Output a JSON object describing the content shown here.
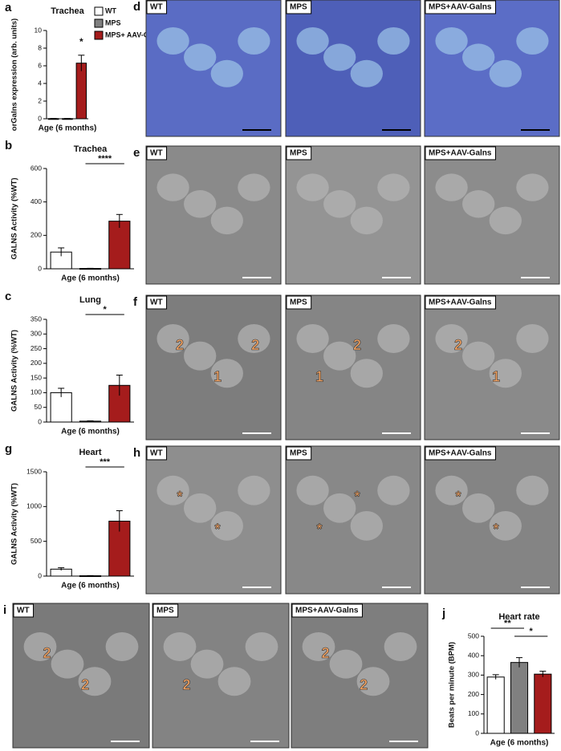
{
  "chart_data": [
    {
      "panel": "a",
      "type": "bar",
      "title": "Trachea",
      "y_label": "orGalns expression (arb. units)",
      "x_label": "Age (6 months)",
      "categories": [
        null,
        null,
        null
      ],
      "values": [
        0.02,
        0.02,
        6.3
      ],
      "errors": [
        0.01,
        0.01,
        0.9
      ],
      "colors": [
        "#ffffff",
        "#808080",
        "#a51c1c"
      ],
      "ylim": [
        0,
        10
      ],
      "yticks": [
        0,
        2,
        4,
        6,
        8,
        10
      ],
      "significance": [
        "*"
      ],
      "legend": [
        "WT",
        "MPS",
        "MPS+ AAV-Galns"
      ]
    },
    {
      "panel": "b",
      "type": "bar",
      "title": "Trachea",
      "y_label": "GALNS Activity (%WT)",
      "x_label": "Age (6 months)",
      "categories": [
        null,
        null,
        null
      ],
      "values": [
        100,
        2,
        285
      ],
      "errors": [
        25,
        1,
        40
      ],
      "colors": [
        "#ffffff",
        "#808080",
        "#a51c1c"
      ],
      "ylim": [
        0,
        600
      ],
      "yticks": [
        0,
        200,
        400,
        600
      ],
      "significance": [
        "****"
      ]
    },
    {
      "panel": "c",
      "type": "bar",
      "title": "Lung",
      "y_label": "GALNS Activity (%WT)",
      "x_label": "Age (6 months)",
      "categories": [
        null,
        null,
        null
      ],
      "values": [
        100,
        3,
        125
      ],
      "errors": [
        15,
        1,
        35
      ],
      "colors": [
        "#ffffff",
        "#808080",
        "#a51c1c"
      ],
      "ylim": [
        0,
        350
      ],
      "yticks": [
        0,
        50,
        100,
        150,
        200,
        250,
        300,
        350
      ],
      "significance": [
        "*"
      ]
    },
    {
      "panel": "g",
      "type": "bar",
      "title": "Heart",
      "y_label": "GALNS Activity (%WT)",
      "x_label": "Age (6 months)",
      "categories": [
        null,
        null,
        null
      ],
      "values": [
        100,
        5,
        790
      ],
      "errors": [
        20,
        2,
        150
      ],
      "colors": [
        "#ffffff",
        "#808080",
        "#a51c1c"
      ],
      "ylim": [
        0,
        1500
      ],
      "yticks": [
        0,
        500,
        1000,
        1500
      ],
      "significance": [
        "***"
      ]
    },
    {
      "panel": "j",
      "type": "bar",
      "title": "Heart rate",
      "y_label": "Beats per minute (BPM)",
      "x_label": "Age (6 months)",
      "categories": [
        null,
        null,
        null
      ],
      "values": [
        290,
        365,
        305
      ],
      "errors": [
        12,
        25,
        15
      ],
      "colors": [
        "#ffffff",
        "#808080",
        "#a51c1c"
      ],
      "ylim": [
        0,
        500
      ],
      "yticks": [
        0,
        100,
        200,
        300,
        400,
        500
      ],
      "significance": [
        "**",
        "*"
      ]
    }
  ],
  "micrographs": [
    {
      "panel": "d",
      "images": [
        {
          "label": "WT",
          "annotations": []
        },
        {
          "label": "MPS",
          "annotations": []
        },
        {
          "label": "MPS+AAV-Galns",
          "annotations": []
        }
      ]
    },
    {
      "panel": "e",
      "images": [
        {
          "label": "WT",
          "annotations": []
        },
        {
          "label": "MPS",
          "annotations": []
        },
        {
          "label": "MPS+AAV-Galns",
          "annotations": []
        }
      ]
    },
    {
      "panel": "f",
      "images": [
        {
          "label": "WT",
          "annotations": [
            "2",
            "1",
            "2"
          ]
        },
        {
          "label": "MPS",
          "annotations": [
            "1",
            "2"
          ]
        },
        {
          "label": "MPS+AAV-Galns",
          "annotations": [
            "2",
            "1"
          ]
        }
      ]
    },
    {
      "panel": "h",
      "images": [
        {
          "label": "WT",
          "annotations": [
            "*",
            "*"
          ]
        },
        {
          "label": "MPS",
          "annotations": [
            "*",
            "*"
          ]
        },
        {
          "label": "MPS+AAV-Galns",
          "annotations": [
            "*",
            "*"
          ]
        }
      ]
    },
    {
      "panel": "i",
      "images": [
        {
          "label": "WT",
          "annotations": [
            "2",
            "2"
          ]
        },
        {
          "label": "MPS",
          "annotations": [
            "2"
          ]
        },
        {
          "label": "MPS+AAV-Galns",
          "annotations": [
            "2",
            "2"
          ]
        }
      ]
    }
  ]
}
